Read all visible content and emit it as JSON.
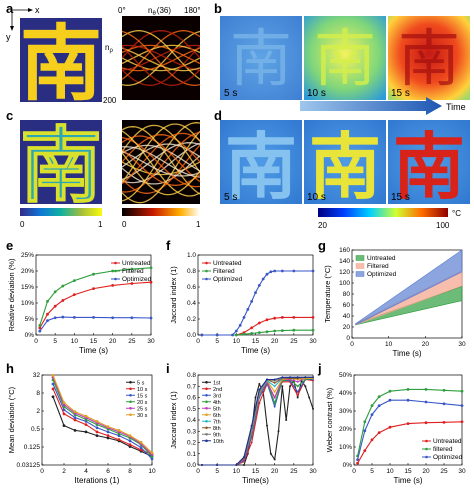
{
  "panel_letters": {
    "a": "a",
    "b": "b",
    "c": "c",
    "d": "d",
    "e": "e",
    "f": "f",
    "g": "g",
    "h": "h",
    "i": "i",
    "j": "j"
  },
  "top": {
    "glyph": "南",
    "axis_x": "x",
    "axis_y": "y",
    "n_theta": "n",
    "n_theta_sub": "θ",
    "n_theta_count": "(36)",
    "angle_start": "0°",
    "angle_end": "180°",
    "n_rho": "n",
    "n_rho_sub": "ρ",
    "rho_max": "200",
    "time_labels": [
      "5 s",
      "10 s",
      "15 s"
    ],
    "time_arrow_label": "Time",
    "cb_gray": {
      "min": "0",
      "max": "1"
    },
    "cb_hot": {
      "min": "0",
      "max": "1"
    },
    "cb_temp": {
      "min": "20",
      "max": "100",
      "unit": "°C"
    }
  },
  "chart_data": [
    {
      "id": "e",
      "type": "line",
      "xlabel": "Time (s)",
      "ylabel": "Relative deviation (%)",
      "xlim": [
        0,
        30
      ],
      "ylim": [
        0,
        25
      ],
      "xticks": [
        "0",
        "5",
        "10",
        "15",
        "20",
        "25",
        "30"
      ],
      "yticks": [
        "0%",
        "5%",
        "10%",
        "15%",
        "20%",
        "25%"
      ],
      "legend": "top-right",
      "series": [
        {
          "name": "Untreated",
          "color": "#e02020",
          "x": [
            1,
            3,
            5,
            7,
            10,
            15,
            20,
            25,
            30
          ],
          "values": [
            2.2,
            6.5,
            9,
            10.8,
            12.6,
            14.5,
            15.5,
            16.1,
            16.5
          ]
        },
        {
          "name": "Filtered",
          "color": "#2e9e3e",
          "x": [
            1,
            3,
            5,
            7,
            10,
            15,
            20,
            25,
            30
          ],
          "values": [
            3,
            10.5,
            13.5,
            15.3,
            17,
            19,
            20,
            20.6,
            21
          ]
        },
        {
          "name": "Optimized",
          "color": "#3a57c9",
          "x": [
            1,
            3,
            5,
            7,
            10,
            15,
            20,
            25,
            30
          ],
          "values": [
            1.2,
            4.5,
            5.4,
            5.6,
            5.5,
            5.5,
            5.4,
            5.4,
            5.3
          ]
        }
      ]
    },
    {
      "id": "f",
      "type": "line",
      "xlabel": "Time (s)",
      "ylabel": "Jaccard index (1)",
      "xlim": [
        0,
        30
      ],
      "ylim": [
        0,
        1
      ],
      "xticks": [
        "0",
        "5",
        "10",
        "15",
        "20",
        "25",
        "30"
      ],
      "yticks": [
        "0.0",
        "0.2",
        "0.4",
        "0.6",
        "0.8",
        "1.0"
      ],
      "legend": "top-left",
      "series": [
        {
          "name": "Untreated",
          "color": "#e02020",
          "x": [
            1,
            5,
            10,
            12,
            14,
            16,
            18,
            20,
            22,
            25,
            30
          ],
          "values": [
            0,
            0,
            0,
            0.03,
            0.09,
            0.15,
            0.19,
            0.21,
            0.22,
            0.22,
            0.22
          ]
        },
        {
          "name": "Filtered",
          "color": "#2e9e3e",
          "x": [
            1,
            5,
            10,
            12,
            14,
            16,
            18,
            20,
            22,
            25,
            30
          ],
          "values": [
            0,
            0,
            0,
            0.01,
            0.02,
            0.03,
            0.04,
            0.05,
            0.055,
            0.06,
            0.06
          ]
        },
        {
          "name": "Optimized",
          "color": "#3a57c9",
          "x": [
            1,
            5,
            9,
            10,
            11,
            12,
            13,
            14,
            15,
            16,
            17,
            18,
            19,
            20,
            22,
            25,
            30
          ],
          "values": [
            0,
            0,
            0,
            0.05,
            0.12,
            0.22,
            0.32,
            0.42,
            0.53,
            0.62,
            0.7,
            0.76,
            0.79,
            0.8,
            0.8,
            0.8,
            0.8
          ]
        }
      ]
    },
    {
      "id": "g",
      "type": "area",
      "xlabel": "Time (s)",
      "ylabel": "Temperature (°C)",
      "xlim": [
        0,
        30
      ],
      "ylim": [
        0,
        160
      ],
      "xticks": [
        "0",
        "10",
        "20",
        "30"
      ],
      "yticks": [
        "0",
        "20",
        "40",
        "60",
        "80",
        "100",
        "120",
        "140",
        "160"
      ],
      "legend": "top-left",
      "series": [
        {
          "name": "Untreated",
          "color": "#2e9e3e",
          "x": [
            1,
            30
          ],
          "lower": [
            24,
            68
          ],
          "upper": [
            26,
            94
          ]
        },
        {
          "name": "Filtered",
          "color": "#f4a38a",
          "x": [
            1,
            30
          ],
          "lower": [
            24,
            95
          ],
          "upper": [
            26,
            122
          ]
        },
        {
          "name": "Optimized",
          "color": "#5b7fd1",
          "x": [
            1,
            30
          ],
          "lower": [
            24,
            120
          ],
          "upper": [
            26,
            160
          ]
        }
      ]
    },
    {
      "id": "h",
      "type": "line",
      "xlabel": "Iterations (1)",
      "ylabel": "Mean deviation (°C)",
      "scale": "log2",
      "xlim": [
        0,
        10
      ],
      "ylim": [
        0.03125,
        32
      ],
      "xticks": [
        "0",
        "2",
        "4",
        "6",
        "8",
        "10"
      ],
      "yticks": [
        "32",
        "8",
        "2",
        "0.5",
        "0.125",
        "0.03125"
      ],
      "legend": "top-right",
      "series": [
        {
          "name": "5 s",
          "color": "#222222",
          "x": [
            1,
            2,
            3,
            4,
            5,
            6,
            7,
            8,
            9,
            10
          ],
          "values": [
            6,
            0.65,
            0.45,
            0.4,
            0.3,
            0.25,
            0.2,
            0.13,
            0.09,
            0.06
          ]
        },
        {
          "name": "10 s",
          "color": "#e02020",
          "x": [
            1,
            2,
            3,
            4,
            5,
            6,
            7,
            8,
            9,
            10
          ],
          "values": [
            11,
            1.6,
            1,
            0.7,
            0.4,
            0.3,
            0.22,
            0.15,
            0.1,
            0.07
          ]
        },
        {
          "name": "15 s",
          "color": "#3a57c9",
          "x": [
            1,
            2,
            3,
            4,
            5,
            6,
            7,
            8,
            9,
            10
          ],
          "values": [
            16,
            2.2,
            1.2,
            0.9,
            0.55,
            0.4,
            0.3,
            0.2,
            0.12,
            0.05
          ]
        },
        {
          "name": "20 s",
          "color": "#2e9e3e",
          "x": [
            1,
            2,
            3,
            4,
            5,
            6,
            7,
            8,
            9,
            10
          ],
          "values": [
            22,
            2.8,
            1.5,
            1.05,
            0.7,
            0.5,
            0.35,
            0.25,
            0.15,
            0.06
          ]
        },
        {
          "name": "25 s",
          "color": "#c03ab8",
          "x": [
            1,
            2,
            3,
            4,
            5,
            6,
            7,
            8,
            9,
            10
          ],
          "values": [
            27,
            3.3,
            1.7,
            1.2,
            0.8,
            0.55,
            0.4,
            0.28,
            0.16,
            0.07
          ]
        },
        {
          "name": "30 s",
          "color": "#e0a020",
          "x": [
            1,
            2,
            3,
            4,
            5,
            6,
            7,
            8,
            9,
            10
          ],
          "values": [
            31,
            3.8,
            1.9,
            1.35,
            0.9,
            0.6,
            0.45,
            0.3,
            0.18,
            0.08
          ]
        }
      ]
    },
    {
      "id": "i",
      "type": "line",
      "xlabel": "Time(s)",
      "ylabel": "Jaccard index (1)",
      "xlim": [
        0,
        30
      ],
      "ylim": [
        0,
        0.8
      ],
      "xticks": [
        "0",
        "5",
        "10",
        "15",
        "20",
        "25",
        "30"
      ],
      "yticks": [
        "0.0",
        "0.1",
        "0.2",
        "0.3",
        "0.4",
        "0.5",
        "0.6",
        "0.7",
        "0.8"
      ],
      "legend": "top-left",
      "series": [
        {
          "name": "1st",
          "color": "#222222",
          "x": [
            1,
            5,
            10,
            12,
            13,
            14,
            15,
            16,
            17,
            18,
            19,
            20,
            21,
            22,
            23,
            24,
            25,
            26,
            27,
            28,
            29,
            30
          ],
          "values": [
            0,
            0,
            0,
            0,
            0.1,
            0.3,
            0.6,
            0.72,
            0.65,
            0.35,
            0.1,
            0.05,
            0.3,
            0.7,
            0.4,
            0.7,
            0.75,
            0.6,
            0.75,
            0.7,
            0.6,
            0.5
          ]
        },
        {
          "name": "2nd",
          "color": "#e02020",
          "x": [
            1,
            5,
            10,
            12,
            14,
            16,
            18,
            20,
            22,
            24,
            26,
            28,
            30
          ],
          "values": [
            0,
            0,
            0,
            0.03,
            0.2,
            0.55,
            0.72,
            0.6,
            0.74,
            0.74,
            0.62,
            0.76,
            0.75
          ]
        },
        {
          "name": "3rd",
          "color": "#3a57c9",
          "x": [
            1,
            5,
            10,
            12,
            14,
            16,
            18,
            20,
            22,
            24,
            26,
            28,
            30
          ],
          "values": [
            0,
            0,
            0,
            0.04,
            0.25,
            0.6,
            0.73,
            0.52,
            0.75,
            0.75,
            0.65,
            0.76,
            0.76
          ]
        },
        {
          "name": "4th",
          "color": "#2e9e3e",
          "x": [
            1,
            5,
            10,
            12,
            14,
            16,
            18,
            20,
            22,
            24,
            26,
            28,
            30
          ],
          "values": [
            0,
            0,
            0,
            0.05,
            0.28,
            0.62,
            0.74,
            0.55,
            0.75,
            0.76,
            0.7,
            0.76,
            0.77
          ]
        },
        {
          "name": "5th",
          "color": "#c03ab8",
          "x": [
            1,
            5,
            10,
            12,
            14,
            16,
            18,
            20,
            22,
            24,
            26,
            28,
            30
          ],
          "values": [
            0,
            0,
            0,
            0.05,
            0.3,
            0.63,
            0.74,
            0.6,
            0.76,
            0.76,
            0.74,
            0.77,
            0.77
          ]
        },
        {
          "name": "6th",
          "color": "#e0a020",
          "x": [
            1,
            5,
            10,
            12,
            14,
            16,
            18,
            20,
            22,
            24,
            26,
            28,
            30
          ],
          "values": [
            0,
            0,
            0,
            0.06,
            0.31,
            0.64,
            0.75,
            0.65,
            0.76,
            0.77,
            0.76,
            0.77,
            0.77
          ]
        },
        {
          "name": "7th",
          "color": "#22b8c8",
          "x": [
            1,
            5,
            10,
            12,
            14,
            16,
            18,
            20,
            22,
            24,
            26,
            28,
            30
          ],
          "values": [
            0,
            0,
            0,
            0.06,
            0.32,
            0.65,
            0.75,
            0.7,
            0.77,
            0.77,
            0.77,
            0.78,
            0.78
          ]
        },
        {
          "name": "8th",
          "color": "#8a5a2a",
          "x": [
            1,
            5,
            10,
            12,
            14,
            16,
            18,
            20,
            22,
            24,
            26,
            28,
            30
          ],
          "values": [
            0,
            0,
            0,
            0.06,
            0.33,
            0.66,
            0.76,
            0.73,
            0.77,
            0.77,
            0.77,
            0.78,
            0.78
          ]
        },
        {
          "name": "9th",
          "color": "#7a7a7a",
          "x": [
            1,
            5,
            10,
            12,
            14,
            16,
            18,
            20,
            22,
            24,
            26,
            28,
            30
          ],
          "values": [
            0,
            0,
            0,
            0.07,
            0.34,
            0.66,
            0.76,
            0.75,
            0.77,
            0.78,
            0.78,
            0.78,
            0.78
          ]
        },
        {
          "name": "10th",
          "color": "#1f2f8f",
          "x": [
            1,
            5,
            10,
            12,
            14,
            16,
            18,
            20,
            22,
            24,
            26,
            28,
            30
          ],
          "values": [
            0,
            0,
            0,
            0.07,
            0.35,
            0.67,
            0.76,
            0.76,
            0.78,
            0.78,
            0.78,
            0.78,
            0.78
          ]
        }
      ]
    },
    {
      "id": "j",
      "type": "line",
      "xlabel": "Time (s)",
      "ylabel": "Weber contrast (%)",
      "xlim": [
        0,
        30
      ],
      "ylim": [
        0,
        50
      ],
      "xticks": [
        "0",
        "5",
        "10",
        "15",
        "20",
        "25",
        "30"
      ],
      "yticks": [
        "0%",
        "10%",
        "20%",
        "30%",
        "40%",
        "50%"
      ],
      "legend": "bottom-right",
      "series": [
        {
          "name": "Untreated",
          "color": "#e02020",
          "x": [
            1,
            3,
            5,
            7,
            10,
            15,
            20,
            25,
            30
          ],
          "values": [
            1,
            8,
            14,
            18,
            21,
            23,
            23.5,
            23.7,
            24
          ]
        },
        {
          "name": "filtered",
          "color": "#2e9e3e",
          "x": [
            1,
            3,
            5,
            7,
            10,
            15,
            20,
            25,
            30
          ],
          "values": [
            5,
            24,
            33,
            38,
            41,
            42,
            42,
            41.5,
            41
          ]
        },
        {
          "name": "Optimized",
          "color": "#3a57c9",
          "x": [
            1,
            3,
            5,
            7,
            10,
            15,
            20,
            25,
            30
          ],
          "values": [
            3,
            19,
            28,
            33,
            36,
            36,
            35,
            34,
            33
          ]
        }
      ]
    }
  ]
}
